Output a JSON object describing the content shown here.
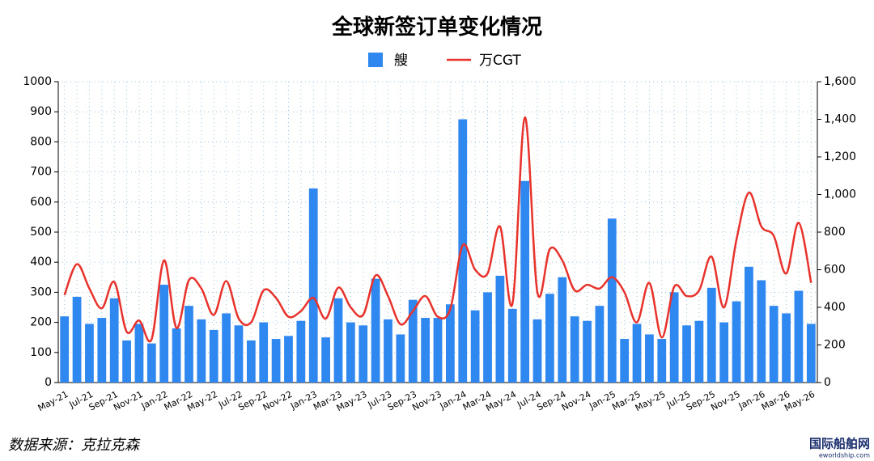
{
  "chart_data": {
    "type": "bar-line",
    "title": "全球新签订单变化情况",
    "categories": [
      "May-21",
      null,
      "Jul-21",
      null,
      "Sep-21",
      null,
      "Nov-21",
      null,
      "Jan-22",
      null,
      "Mar-22",
      null,
      "May-22",
      null,
      "Jul-22",
      null,
      "Sep-22",
      null,
      "Nov-22",
      null,
      "Jan-23",
      null,
      "Mar-23",
      null,
      "May-23",
      null,
      "Jul-23",
      null,
      "Sep-23",
      null,
      "Nov-23",
      null,
      "Jan-24",
      null,
      "Mar-24",
      null,
      "May-24",
      null,
      "Jul-24",
      null,
      "Sep-24",
      null,
      "Nov-24",
      null,
      "Jan-25",
      null,
      "Mar-25",
      null,
      "May-25",
      null,
      "Jul-25",
      null,
      "Sep-25",
      null,
      "Nov-25",
      null,
      "Jan-26",
      null,
      "Mar-26",
      null,
      "May-26"
    ],
    "series": [
      {
        "name": "艘",
        "type": "bar",
        "color": "#2f87f0",
        "values": [
          220,
          285,
          195,
          215,
          280,
          140,
          195,
          130,
          325,
          180,
          255,
          210,
          175,
          230,
          190,
          140,
          200,
          145,
          155,
          205,
          645,
          150,
          280,
          200,
          190,
          345,
          210,
          160,
          275,
          215,
          215,
          260,
          875,
          240,
          300,
          355,
          245,
          670,
          210,
          295,
          350,
          220,
          205,
          255,
          545,
          145,
          195,
          160,
          145,
          300,
          190,
          205,
          315,
          200,
          270,
          385,
          340,
          255,
          230,
          305,
          195
        ]
      },
      {
        "name": "万CGT",
        "type": "line",
        "axis": "y2",
        "color": "#e8332c",
        "values": [
          465,
          630,
          500,
          395,
          535,
          270,
          330,
          230,
          650,
          290,
          545,
          500,
          360,
          540,
          340,
          320,
          490,
          450,
          350,
          380,
          450,
          340,
          505,
          400,
          360,
          570,
          460,
          310,
          380,
          460,
          350,
          390,
          730,
          600,
          580,
          830,
          420,
          1410,
          480,
          710,
          650,
          490,
          520,
          500,
          560,
          480,
          320,
          530,
          240,
          510,
          460,
          490,
          670,
          400,
          760,
          1010,
          830,
          780,
          580,
          850,
          530
        ]
      }
    ],
    "ylim": [
      0,
      1000
    ],
    "yticks": [
      0,
      100,
      200,
      300,
      400,
      500,
      600,
      700,
      800,
      900,
      1000
    ],
    "y2lim": [
      0,
      1600
    ],
    "y2ticks": [
      0,
      200,
      400,
      600,
      800,
      {
        "value": 1000,
        "label": "1,000"
      },
      {
        "value": 1200,
        "label": "1,200"
      },
      {
        "value": 1400,
        "label": "1,400"
      },
      {
        "value": 1600,
        "label": "1,600"
      }
    ],
    "grid": true,
    "source": "数据来源：克拉克森",
    "watermark": "国际船舶网",
    "watermark_url": "eworldship.com"
  }
}
